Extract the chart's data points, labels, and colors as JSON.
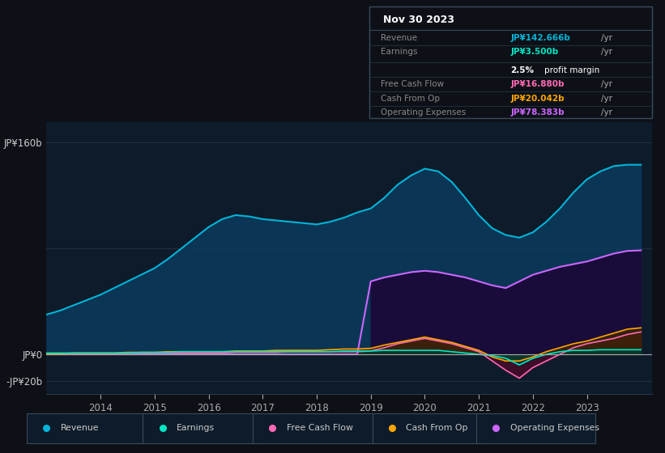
{
  "bg_color": "#0d1117",
  "plot_bg_color": "#0d1b2a",
  "info_box_title": "Nov 30 2023",
  "yticks": [
    "JP¥160b",
    "JP¥0",
    "-JP¥20b"
  ],
  "ytick_values": [
    160,
    0,
    -20
  ],
  "ylim": [
    -30,
    175
  ],
  "xlim_start": 2013.0,
  "xlim_end": 2024.2,
  "xticks": [
    2014,
    2015,
    2016,
    2017,
    2018,
    2019,
    2020,
    2021,
    2022,
    2023
  ],
  "years": [
    2013.0,
    2013.25,
    2013.5,
    2013.75,
    2014.0,
    2014.25,
    2014.5,
    2014.75,
    2015.0,
    2015.25,
    2015.5,
    2015.75,
    2016.0,
    2016.25,
    2016.5,
    2016.75,
    2017.0,
    2017.25,
    2017.5,
    2017.75,
    2018.0,
    2018.25,
    2018.5,
    2018.75,
    2019.0,
    2019.25,
    2019.5,
    2019.75,
    2020.0,
    2020.25,
    2020.5,
    2020.75,
    2021.0,
    2021.25,
    2021.5,
    2021.75,
    2022.0,
    2022.25,
    2022.5,
    2022.75,
    2023.0,
    2023.25,
    2023.5,
    2023.75,
    2024.0
  ],
  "revenue": [
    30,
    33,
    37,
    41,
    45,
    50,
    55,
    60,
    65,
    72,
    80,
    88,
    96,
    102,
    105,
    104,
    102,
    101,
    100,
    99,
    98,
    100,
    103,
    107,
    110,
    118,
    128,
    135,
    140,
    138,
    130,
    118,
    105,
    95,
    90,
    88,
    92,
    100,
    110,
    122,
    132,
    138,
    142,
    143,
    143
  ],
  "earnings": [
    1,
    1,
    1,
    1,
    1,
    1,
    1,
    1.5,
    1.5,
    1.5,
    2,
    2,
    2,
    2,
    2,
    2,
    2,
    2,
    2,
    2,
    2,
    2,
    2.5,
    2.5,
    2.5,
    3,
    3,
    3,
    3,
    3,
    2,
    1,
    0,
    -1,
    -3,
    -8,
    -3,
    0,
    2,
    3,
    3,
    3.5,
    3.5,
    3.5,
    3.5
  ],
  "free_cash_flow": [
    0.5,
    0.5,
    0.5,
    0.5,
    0.5,
    0.5,
    1,
    1,
    1,
    1,
    1,
    1,
    1,
    1,
    1.5,
    1.5,
    1.5,
    1.5,
    2,
    2,
    2,
    2,
    2,
    2,
    2.5,
    5,
    8,
    10,
    12,
    10,
    8,
    5,
    2,
    -5,
    -12,
    -18,
    -10,
    -5,
    0,
    5,
    8,
    10,
    12,
    15,
    16.9
  ],
  "cash_from_op": [
    0.5,
    0.5,
    1,
    1,
    1,
    1,
    1.5,
    1.5,
    1.5,
    2,
    2,
    2,
    2,
    2,
    2.5,
    2.5,
    2.5,
    3,
    3,
    3,
    3,
    3.5,
    4,
    4,
    4.5,
    7,
    9,
    11,
    13,
    11,
    9,
    6,
    3,
    -2,
    -5,
    -5,
    -2,
    2,
    5,
    8,
    10,
    13,
    16,
    19,
    20
  ],
  "operating_expenses": [
    0,
    0,
    0,
    0,
    0,
    0,
    0,
    0,
    0,
    0,
    0,
    0,
    0,
    0,
    0,
    0,
    0,
    0,
    0,
    0,
    0,
    0,
    0,
    0,
    55,
    58,
    60,
    62,
    63,
    62,
    60,
    58,
    55,
    52,
    50,
    55,
    60,
    63,
    66,
    68,
    70,
    73,
    76,
    78,
    78.4
  ],
  "revenue_color": "#00b4d8",
  "revenue_fill": "#0a3a5c",
  "earnings_color": "#00e5c4",
  "earnings_fill": "#003d33",
  "free_cash_flow_color": "#ff69b4",
  "free_cash_flow_fill": "#4a0a2a",
  "cash_from_op_color": "#ffa500",
  "cash_from_op_fill": "#3d2600",
  "op_exp_color": "#cc66ff",
  "op_exp_fill": "#1a0a3a",
  "legend_items": [
    {
      "label": "Revenue",
      "color": "#00b4d8"
    },
    {
      "label": "Earnings",
      "color": "#00e5c4"
    },
    {
      "label": "Free Cash Flow",
      "color": "#ff69b4"
    },
    {
      "label": "Cash From Op",
      "color": "#ffa500"
    },
    {
      "label": "Operating Expenses",
      "color": "#cc66ff"
    }
  ],
  "info_rows": [
    {
      "label": "Revenue",
      "value": "JP¥142.666b",
      "suffix": " /yr",
      "value_color": "#00b4d8",
      "label_color": "#888888"
    },
    {
      "label": "Earnings",
      "value": "JP¥3.500b",
      "suffix": " /yr",
      "value_color": "#00e5c4",
      "label_color": "#888888"
    },
    {
      "label": "",
      "value": "2.5%",
      "suffix": " profit margin",
      "value_color": "#ffffff",
      "label_color": "#888888"
    },
    {
      "label": "Free Cash Flow",
      "value": "JP¥16.880b",
      "suffix": " /yr",
      "value_color": "#ff69b4",
      "label_color": "#888888"
    },
    {
      "label": "Cash From Op",
      "value": "JP¥20.042b",
      "suffix": " /yr",
      "value_color": "#ffa500",
      "label_color": "#888888"
    },
    {
      "label": "Operating Expenses",
      "value": "JP¥78.383b",
      "suffix": " /yr",
      "value_color": "#cc66ff",
      "label_color": "#888888"
    }
  ]
}
